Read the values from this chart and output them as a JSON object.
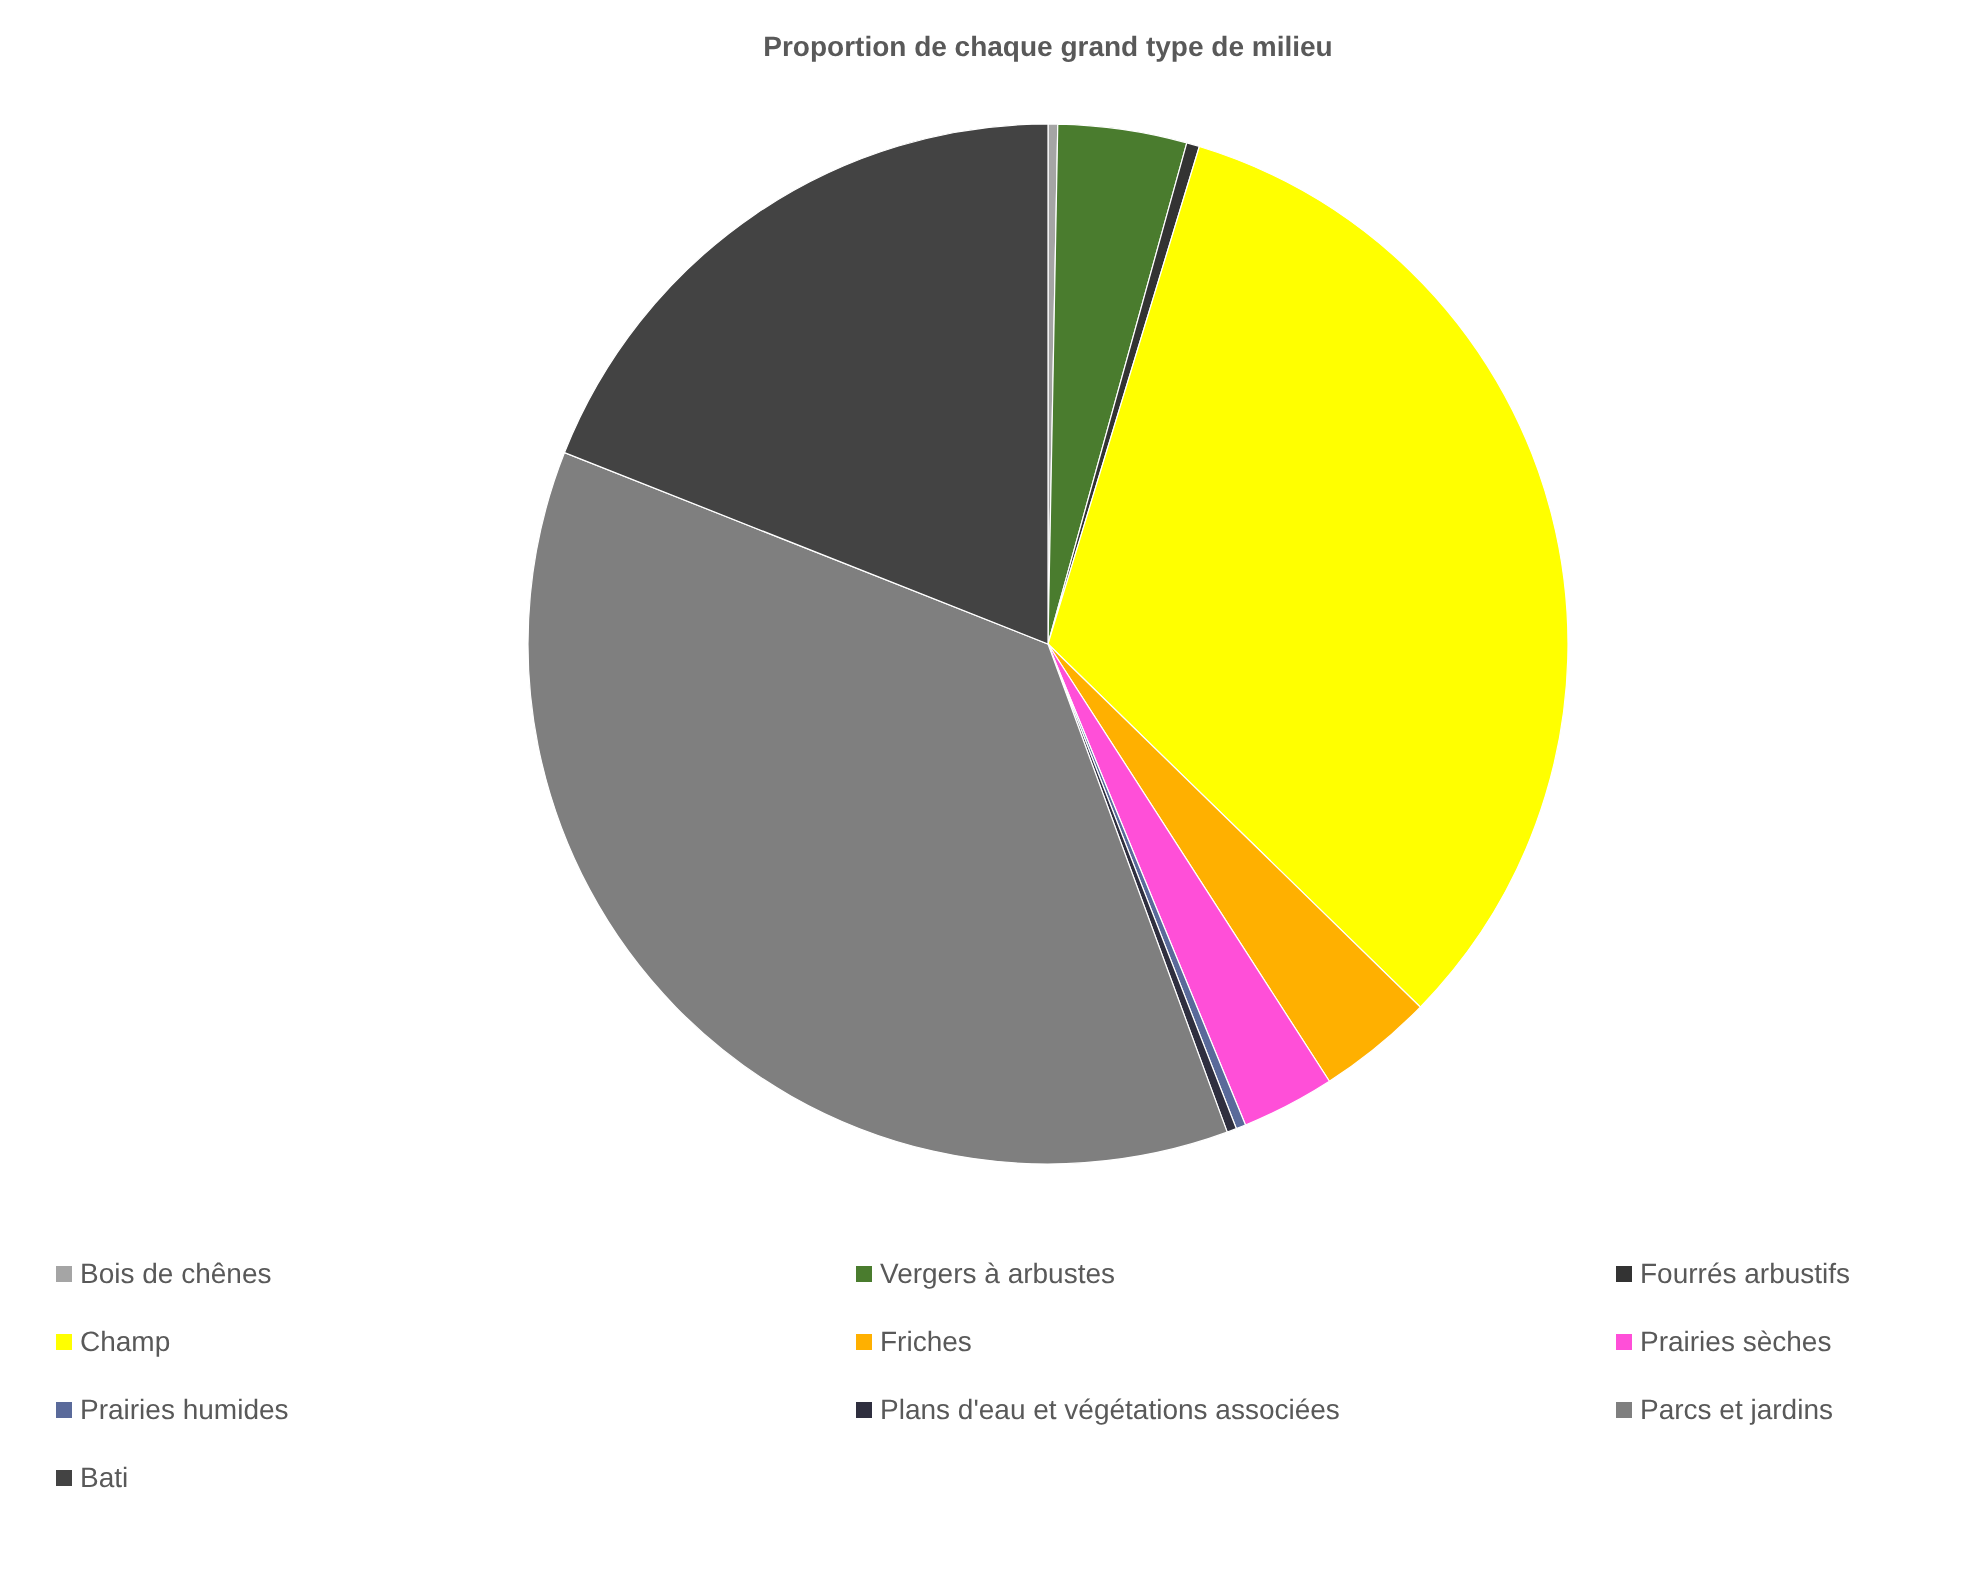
{
  "chart_data": {
    "type": "pie",
    "title": "Proportion de chaque grand type de milieu",
    "categories": [
      "Bois de chênes",
      "Vergers à arbustes",
      "Fourrés arbustifs",
      "Champ",
      "Friches",
      "Prairies sèches",
      "Prairies humides",
      "Plans d'eau et végétations associées",
      "Parcs et jardins",
      "Bati"
    ],
    "values": [
      0.3,
      4.0,
      0.4,
      32.6,
      3.6,
      2.9,
      0.3,
      0.3,
      36.6,
      19.0
    ],
    "colors": [
      "#a5a5a5",
      "#4a7c2e",
      "#333333",
      "#ffff00",
      "#ffb000",
      "#ff4fd8",
      "#5a6a9a",
      "#2f2f3f",
      "#7f7f7f",
      "#434343"
    ],
    "legend": "bottom"
  }
}
